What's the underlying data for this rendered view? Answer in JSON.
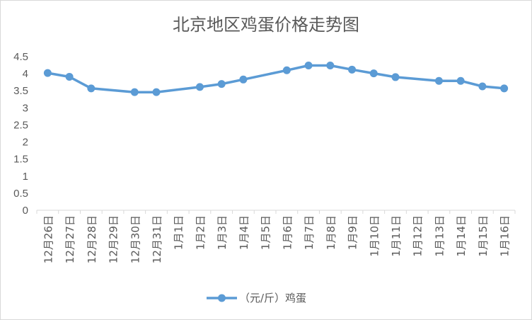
{
  "chart_data": {
    "type": "line",
    "title": "北京地区鸡蛋价格走势图",
    "xlabel": "",
    "ylabel": "",
    "ylim": [
      0,
      4.5
    ],
    "yticks": [
      "0",
      "0.5",
      "1",
      "1.5",
      "2",
      "2.5",
      "3",
      "3.5",
      "4",
      "4.5"
    ],
    "grid": false,
    "legend_position": "bottom",
    "categories": [
      "12月26日",
      "12月27日",
      "12月28日",
      "12月29日",
      "12月30日",
      "12月31日",
      "1月1日",
      "1月2日",
      "1月3日",
      "1月4日",
      "1月5日",
      "1月6日",
      "1月7日",
      "1月8日",
      "1月9日",
      "1月10日",
      "1月11日",
      "1月12日",
      "1月13日",
      "1月14日",
      "1月15日",
      "1月16日"
    ],
    "series": [
      {
        "name": "（元/斤）鸡蛋",
        "color": "#5b9bd5",
        "points": [
          {
            "x": "12月26日",
            "y": 4.02
          },
          {
            "x": "12月27日",
            "y": 3.91
          },
          {
            "x": "12月28日",
            "y": 3.57
          },
          {
            "x": "12月30日",
            "y": 3.46
          },
          {
            "x": "12月31日",
            "y": 3.46
          },
          {
            "x": "1月2日",
            "y": 3.61
          },
          {
            "x": "1月3日",
            "y": 3.7
          },
          {
            "x": "1月4日",
            "y": 3.83
          },
          {
            "x": "1月6日",
            "y": 4.1
          },
          {
            "x": "1月7日",
            "y": 4.24
          },
          {
            "x": "1月8日",
            "y": 4.24
          },
          {
            "x": "1月9日",
            "y": 4.12
          },
          {
            "x": "1月10日",
            "y": 4.01
          },
          {
            "x": "1月11日",
            "y": 3.9
          },
          {
            "x": "1月13日",
            "y": 3.79
          },
          {
            "x": "1月14日",
            "y": 3.79
          },
          {
            "x": "1月15日",
            "y": 3.63
          },
          {
            "x": "1月16日",
            "y": 3.57
          }
        ]
      }
    ]
  }
}
